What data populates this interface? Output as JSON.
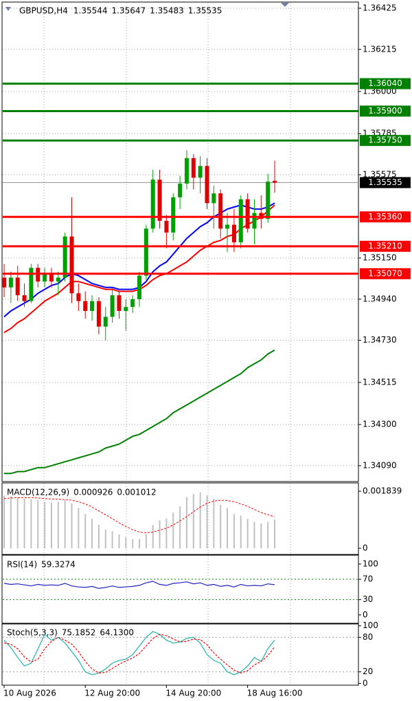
{
  "chart_data": [
    {
      "type": "candlestick",
      "title": "GBPUSD,H4",
      "ohlc": [
        1.35544,
        1.35647,
        1.35483,
        1.35535
      ],
      "categories": [
        "10 Aug 2026",
        null,
        null,
        null,
        null,
        null,
        null,
        null,
        null,
        null,
        null,
        null,
        "12 Aug 20:00",
        null,
        null,
        null,
        null,
        null,
        null,
        null,
        null,
        null,
        null,
        null,
        "14 Aug 20:00",
        null,
        null,
        null,
        null,
        null,
        null,
        null,
        null,
        null,
        null,
        null,
        "18 Aug 16:00",
        null,
        null,
        null,
        null
      ],
      "open": [
        1.3505,
        1.35,
        1.3505,
        1.3496,
        1.3493,
        1.351,
        1.3503,
        1.3507,
        1.3503,
        1.3505,
        1.3526,
        1.3497,
        1.3493,
        1.3488,
        1.3493,
        1.348,
        1.3485,
        1.3496,
        1.3488,
        1.349,
        1.3494,
        1.3506,
        1.353,
        1.3555,
        1.3534,
        1.3528,
        1.3546,
        1.3553,
        1.3566,
        1.3556,
        1.3562,
        1.3543,
        1.3548,
        1.353,
        1.3532,
        1.3523,
        1.3545,
        1.353,
        1.3538,
        1.3535,
        1.35544
      ],
      "high": [
        1.3512,
        1.3508,
        1.3511,
        1.3502,
        1.3512,
        1.3512,
        1.351,
        1.351,
        1.3508,
        1.3528,
        1.3546,
        1.3502,
        1.3498,
        1.3496,
        1.3495,
        1.349,
        1.35,
        1.3498,
        1.3494,
        1.3496,
        1.3508,
        1.3532,
        1.356,
        1.356,
        1.3537,
        1.3548,
        1.3557,
        1.357,
        1.3568,
        1.3567,
        1.3566,
        1.3552,
        1.355,
        1.3538,
        1.354,
        1.3547,
        1.3548,
        1.3545,
        1.3547,
        1.3558,
        1.35647
      ],
      "low": [
        1.3495,
        1.3492,
        1.3493,
        1.349,
        1.3492,
        1.35,
        1.35,
        1.35,
        1.3496,
        1.3503,
        1.3492,
        1.3488,
        1.3484,
        1.3483,
        1.3476,
        1.3473,
        1.3482,
        1.3484,
        1.3478,
        1.3487,
        1.349,
        1.3504,
        1.3528,
        1.353,
        1.352,
        1.3524,
        1.354,
        1.355,
        1.355,
        1.3548,
        1.354,
        1.353,
        1.3525,
        1.3518,
        1.3518,
        1.352,
        1.3528,
        1.3522,
        1.353,
        1.3533,
        1.35483
      ],
      "close": [
        1.35,
        1.3505,
        1.3496,
        1.3493,
        1.351,
        1.3503,
        1.3507,
        1.3503,
        1.3505,
        1.3526,
        1.3497,
        1.3493,
        1.3488,
        1.3493,
        1.348,
        1.3485,
        1.3496,
        1.3488,
        1.349,
        1.3494,
        1.3506,
        1.353,
        1.3555,
        1.3534,
        1.3528,
        1.3546,
        1.3553,
        1.3566,
        1.3556,
        1.3562,
        1.3543,
        1.3548,
        1.353,
        1.3532,
        1.3523,
        1.3545,
        1.353,
        1.3538,
        1.3535,
        1.3554,
        1.35535
      ],
      "up_color": "#00a000",
      "down_color": "#e00000",
      "overlays": [
        {
          "color": "#0000ff",
          "values": [
            1.3485,
            1.3488,
            1.349,
            1.3492,
            1.3494,
            1.3497,
            1.3499,
            1.3501,
            1.3502,
            1.3505,
            1.3507,
            1.3506,
            1.3504,
            1.3502,
            1.3501,
            1.35,
            1.35,
            1.3499,
            1.3499,
            1.3499,
            1.35,
            1.3503,
            1.3508,
            1.3511,
            1.3513,
            1.3517,
            1.3521,
            1.3525,
            1.3528,
            1.3531,
            1.3533,
            1.3536,
            1.3538,
            1.354,
            1.3541,
            1.3542,
            1.3541,
            1.354,
            1.354,
            1.3541,
            1.3543
          ]
        },
        {
          "color": "#ff0000",
          "values": [
            1.3477,
            1.3479,
            1.3482,
            1.3484,
            1.3487,
            1.349,
            1.3493,
            1.3495,
            1.3497,
            1.35,
            1.3503,
            1.3503,
            1.3502,
            1.3501,
            1.35,
            1.3499,
            1.3499,
            1.3498,
            1.3498,
            1.3498,
            1.3499,
            1.3501,
            1.3504,
            1.3506,
            1.3507,
            1.3509,
            1.3511,
            1.3513,
            1.3516,
            1.3519,
            1.3521,
            1.3523,
            1.3524,
            1.3526,
            1.3527,
            1.353,
            1.3532,
            1.3534,
            1.3536,
            1.3539,
            1.3542
          ]
        },
        {
          "color": "#008000",
          "values": [
            1.3405,
            1.3405,
            1.3406,
            1.3406,
            1.3407,
            1.3408,
            1.3408,
            1.3409,
            1.341,
            1.3411,
            1.3412,
            1.3413,
            1.3414,
            1.3415,
            1.3416,
            1.3418,
            1.3419,
            1.342,
            1.3422,
            1.3424,
            1.3425,
            1.3427,
            1.3429,
            1.3431,
            1.3433,
            1.3436,
            1.3438,
            1.344,
            1.3442,
            1.3444,
            1.3446,
            1.3448,
            1.345,
            1.3452,
            1.3454,
            1.3456,
            1.3459,
            1.3461,
            1.3463,
            1.3466,
            1.3468
          ]
        }
      ],
      "levels": [
        {
          "value": 1.3604,
          "label": "1.36040",
          "color": "#008000"
        },
        {
          "value": 1.359,
          "label": "1.35900",
          "color": "#008000"
        },
        {
          "value": 1.3575,
          "label": "1.35750",
          "color": "#008000"
        },
        {
          "value": 1.3536,
          "label": "1.35360",
          "color": "#ff0000"
        },
        {
          "value": 1.3521,
          "label": "1.35210",
          "color": "#ff0000"
        },
        {
          "value": 1.3507,
          "label": "1.35070",
          "color": "#ff0000"
        }
      ],
      "last_price": 1.35535,
      "ylim": [
        1.34009,
        1.36453
      ],
      "yticks": [
        1.36425,
        1.36215,
        {
          "value": 1.36,
          "label": "1.36000"
        },
        1.35785,
        1.35575,
        {
          "value": 1.3515,
          "label": "1.35150"
        },
        {
          "value": 1.3494,
          "label": "1.34940"
        },
        {
          "value": 1.3473,
          "label": "1.34730"
        },
        1.34515,
        {
          "value": 1.343,
          "label": "1.34300"
        },
        {
          "value": 1.3409,
          "label": "1.34090"
        }
      ],
      "grid": true
    },
    {
      "type": "macd",
      "title": "MACD(12,26,9)",
      "series": [
        {
          "style": "bar",
          "color": "#c0c0c0",
          "values": [
            0.0017,
            0.00168,
            0.00165,
            0.0016,
            0.00158,
            0.00156,
            0.0015,
            0.00148,
            0.0015,
            0.00155,
            0.00145,
            0.0013,
            0.0011,
            0.00095,
            0.00075,
            0.0006,
            0.00055,
            0.00045,
            0.00035,
            0.0003,
            0.0003,
            0.00045,
            0.00075,
            0.0009,
            0.00095,
            0.00115,
            0.00135,
            0.00165,
            0.00175,
            0.0018,
            0.0017,
            0.0016,
            0.0014,
            0.0013,
            0.0011,
            0.00105,
            0.00095,
            0.00085,
            0.0008,
            0.00085,
            0.000926
          ]
        },
        {
          "style": "dash",
          "color": "#ff0000",
          "values": [
            0.0016,
            0.00162,
            0.00163,
            0.00163,
            0.00163,
            0.00162,
            0.0016,
            0.00159,
            0.00158,
            0.00157,
            0.00155,
            0.0015,
            0.00143,
            0.00133,
            0.0012,
            0.00108,
            0.00095,
            0.00082,
            0.0007,
            0.0006,
            0.00052,
            0.0005,
            0.00052,
            0.00058,
            0.00065,
            0.00075,
            0.00088,
            0.00102,
            0.00118,
            0.00133,
            0.00145,
            0.00152,
            0.00155,
            0.00154,
            0.0015,
            0.00143,
            0.00135,
            0.00125,
            0.00115,
            0.00108,
            0.001012
          ]
        }
      ],
      "ylim": [
        -0.000177,
        0.002083
      ],
      "yticks": [
        0.001839,
        0
      ]
    },
    {
      "type": "line",
      "title": "RSI(14)",
      "series": [
        {
          "style": "solid",
          "color": "#2020c0",
          "values": [
            62,
            60,
            61,
            59,
            57,
            60,
            58,
            59,
            58,
            62,
            57,
            55,
            54,
            56,
            52,
            54,
            57,
            54,
            55,
            56,
            58,
            63,
            66,
            60,
            58,
            62,
            63,
            65,
            61,
            63,
            58,
            60,
            56,
            58,
            55,
            60,
            57,
            58,
            57,
            61,
            59.3274
          ]
        }
      ],
      "levels": [
        70,
        30
      ],
      "level_color": "#008000",
      "ylim": [
        -15,
        116
      ],
      "yticks": [
        100,
        70,
        30,
        0
      ]
    },
    {
      "type": "line",
      "title": "Stoch(5,3,3)",
      "series": [
        {
          "style": "solid",
          "color": "#20b2aa",
          "values": [
            75,
            62,
            45,
            30,
            35,
            60,
            85,
            75,
            80,
            70,
            55,
            40,
            20,
            15,
            18,
            25,
            35,
            40,
            42,
            50,
            65,
            80,
            90,
            85,
            75,
            70,
            72,
            78,
            80,
            70,
            50,
            40,
            35,
            20,
            15,
            20,
            30,
            45,
            38,
            60,
            75.1852
          ]
        },
        {
          "style": "dash",
          "color": "#ff0000",
          "values": [
            70,
            68,
            60,
            46,
            37,
            42,
            60,
            73,
            80,
            75,
            68,
            55,
            38,
            25,
            18,
            19,
            26,
            33,
            39,
            44,
            52,
            65,
            78,
            85,
            83,
            77,
            72,
            73,
            77,
            76,
            67,
            53,
            42,
            32,
            23,
            18,
            22,
            32,
            38,
            48,
            64.13
          ],
          "value_labels": [
            null,
            null,
            null,
            null,
            null,
            null,
            null,
            null,
            null,
            null,
            null,
            null,
            null,
            null,
            null,
            null,
            null,
            null,
            null,
            null,
            null,
            null,
            null,
            null,
            null,
            null,
            null,
            null,
            null,
            null,
            null,
            null,
            null,
            null,
            null,
            null,
            null,
            null,
            null,
            null,
            "64.1300"
          ]
        }
      ],
      "levels": [
        80,
        20
      ],
      "level_color": "#a0a0a0",
      "ylim": [
        -2,
        102
      ],
      "yticks": [
        100,
        80,
        20,
        0
      ]
    }
  ]
}
